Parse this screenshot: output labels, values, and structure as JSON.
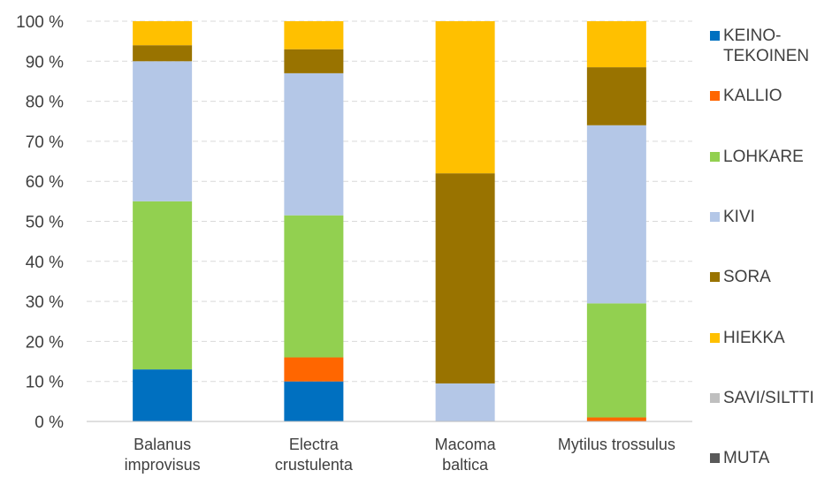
{
  "chart_data": {
    "type": "bar",
    "stacked": true,
    "percent": true,
    "categories": [
      [
        "Balanus",
        "improvisus"
      ],
      [
        "Electra",
        "crustulenta"
      ],
      [
        "Macoma",
        "baltica"
      ],
      [
        "Mytilus trossulus"
      ]
    ],
    "y_ticks": [
      "0 %",
      "10 %",
      "20 %",
      "30 %",
      "40 %",
      "50 %",
      "60 %",
      "70 %",
      "80 %",
      "90 %",
      "100 %"
    ],
    "ylim": [
      0,
      100
    ],
    "grid": true,
    "legend_position": "right",
    "series": [
      {
        "name": "KEINO-\nTEKOINEN",
        "color": "#0070C0",
        "values": [
          13,
          10,
          0,
          0
        ]
      },
      {
        "name": "KALLIO",
        "color": "#FF6600",
        "values": [
          0,
          6,
          0,
          1
        ]
      },
      {
        "name": "LOHKARE",
        "color": "#92D050",
        "values": [
          42,
          35.5,
          0,
          28.5
        ]
      },
      {
        "name": "KIVI",
        "color": "#B4C7E7",
        "values": [
          35,
          35.5,
          9.5,
          44.5
        ]
      },
      {
        "name": "SORA",
        "color": "#997300",
        "values": [
          4,
          6,
          52.5,
          14.5
        ]
      },
      {
        "name": "HIEKKA",
        "color": "#FFC000",
        "values": [
          6,
          7,
          38,
          11.5
        ]
      },
      {
        "name": "SAVI/SILTTI",
        "color": "#BFBFBF",
        "values": [
          0,
          0,
          0,
          0
        ]
      },
      {
        "name": "MUTA",
        "color": "#595959",
        "values": [
          0,
          0,
          0,
          0
        ]
      }
    ]
  }
}
